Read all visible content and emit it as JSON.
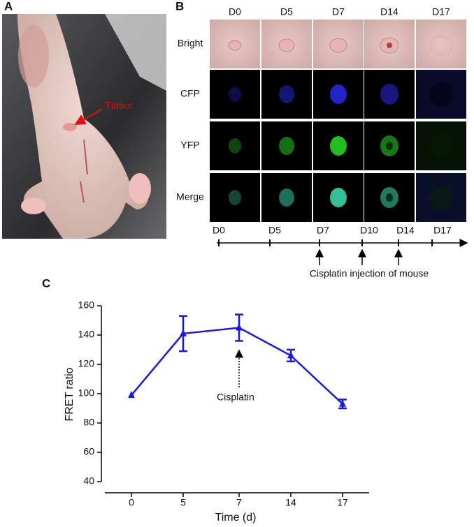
{
  "panel_a": {
    "label": "A",
    "annotation": "Tumor"
  },
  "panel_b": {
    "label": "B",
    "columns": [
      "D0",
      "D5",
      "D7",
      "D14",
      "D17"
    ],
    "rows": [
      "Bright",
      "CFP",
      "YFP",
      "Merge"
    ],
    "timeline": {
      "labels": [
        "D0",
        "D5",
        "D7",
        "D10",
        "D14",
        "D17"
      ],
      "caption": "Cisplatin injection of mouse"
    }
  },
  "chart_data": {
    "type": "line",
    "label": "C",
    "categories": [
      "0",
      "5",
      "7",
      "14",
      "17"
    ],
    "values": [
      99,
      141,
      145,
      126,
      93
    ],
    "errors": [
      null,
      12,
      9,
      4,
      3
    ],
    "color": "#1a1ad6",
    "ylim": [
      40,
      160
    ],
    "yticks": [
      40,
      60,
      80,
      100,
      120,
      140,
      160
    ],
    "xlabel": "Time (d)",
    "ylabel": "FRET ratio",
    "annotation": "Cisplatin"
  }
}
